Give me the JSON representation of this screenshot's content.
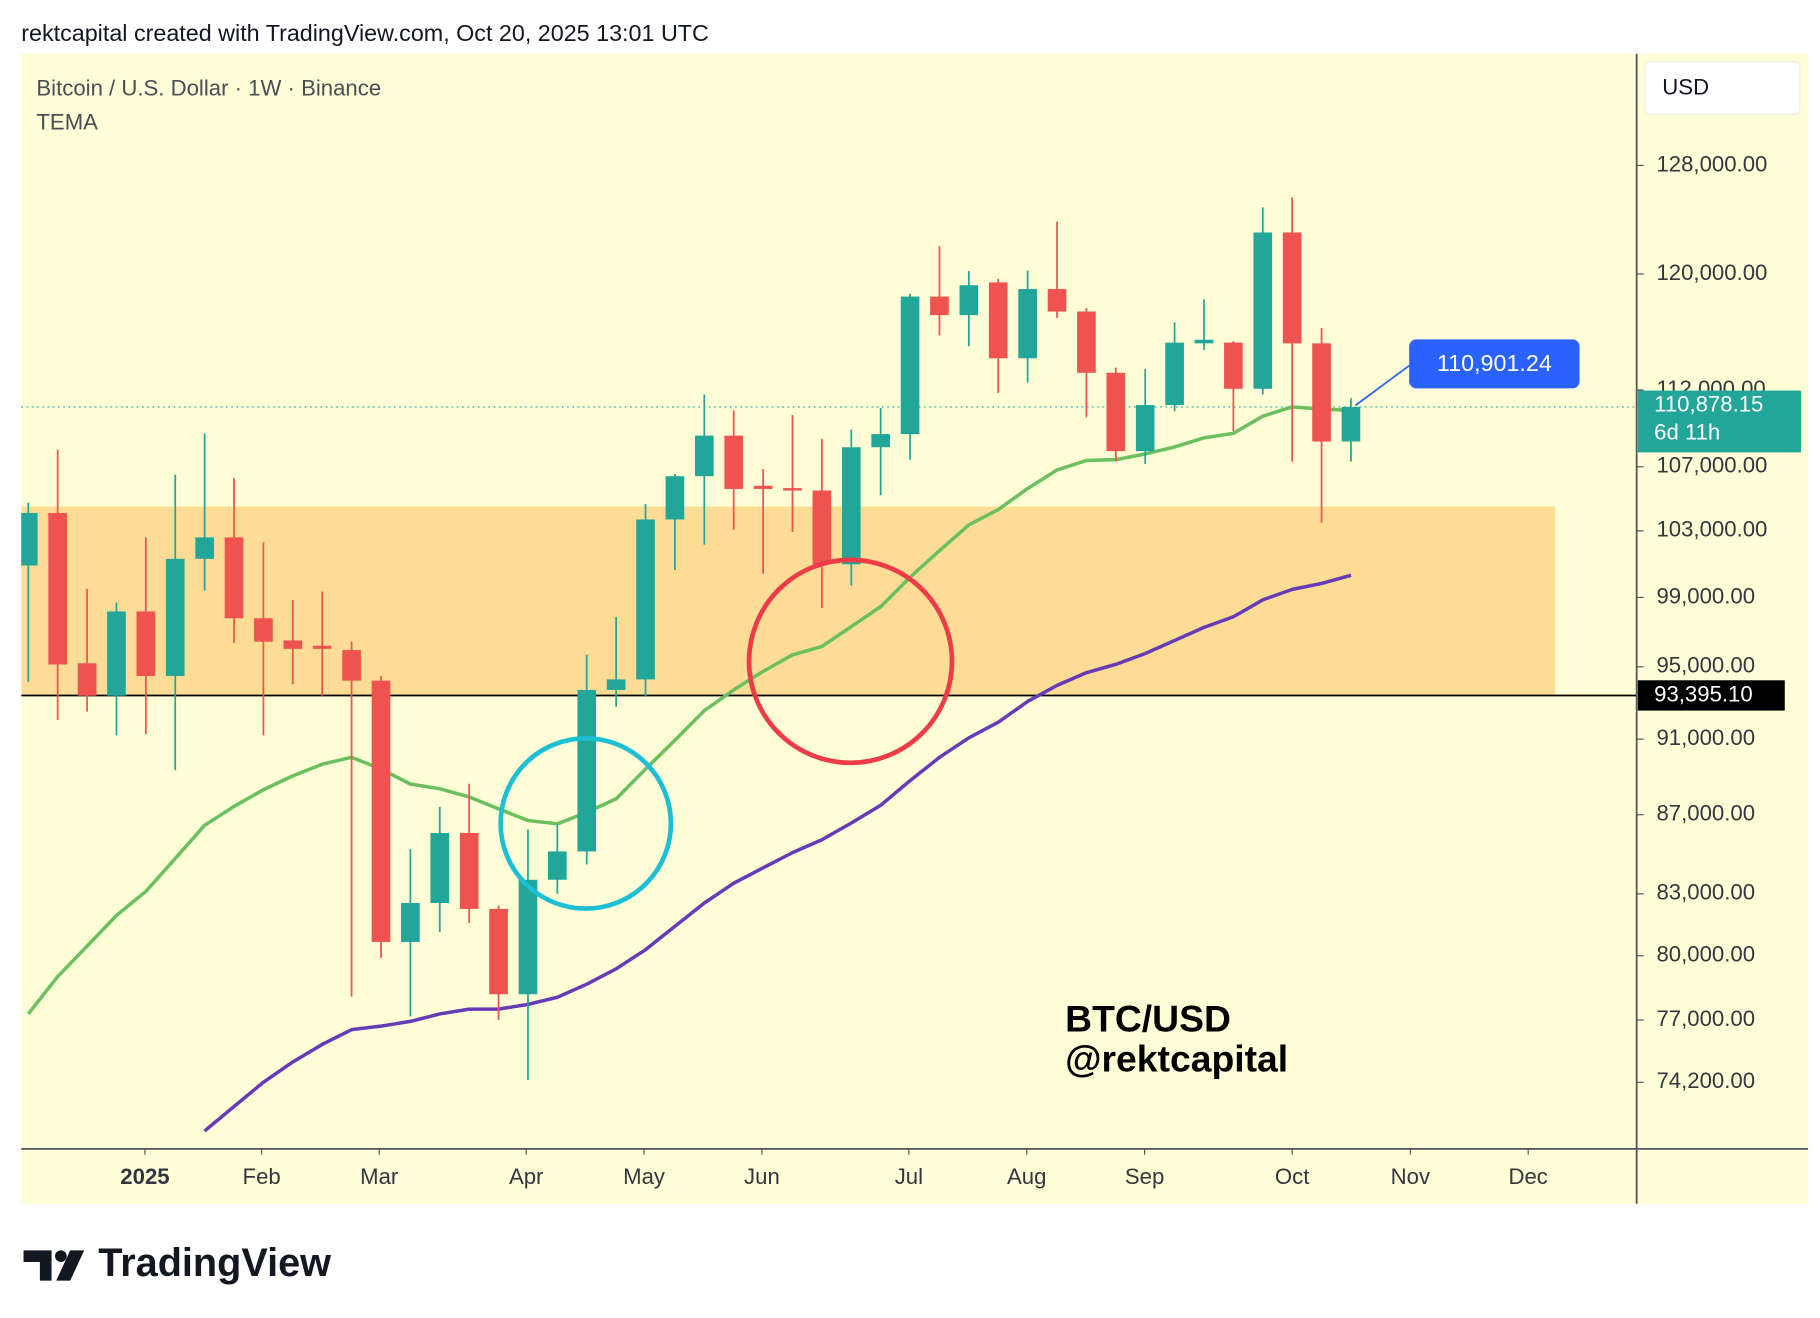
{
  "header": "rektcapital created with TradingView.com, Oct 20, 2025 13:01 UTC",
  "footer": "TradingView",
  "chart_data": {
    "type": "candlestick",
    "title": "Bitcoin / U.S. Dollar · 1W · Binance",
    "currency": "USD",
    "annotations": [
      "BTC/USD",
      "@rektcapital"
    ],
    "log_scale": true,
    "ylim": [
      71320,
      136800
    ],
    "yticks": [
      {
        "value": 128000,
        "label": "128,000.00"
      },
      {
        "value": 120000,
        "label": "120,000.00"
      },
      {
        "value": 112000,
        "label": "112,000.00"
      },
      {
        "value": 107000,
        "label": "107,000.00"
      },
      {
        "value": 103000,
        "label": "103,000.00"
      },
      {
        "value": 99000,
        "label": "99,000.00"
      },
      {
        "value": 95000,
        "label": "95,000.00"
      },
      {
        "value": 91000,
        "label": "91,000.00"
      },
      {
        "value": 87000,
        "label": "87,000.00"
      },
      {
        "value": 83000,
        "label": "83,000.00"
      },
      {
        "value": 80000,
        "label": "80,000.00"
      },
      {
        "value": 77000,
        "label": "77,000.00"
      },
      {
        "value": 74200,
        "label": "74,200.00"
      }
    ],
    "xlim": [
      -0.24,
      54.72
    ],
    "xticks": [
      {
        "value": 3.97,
        "label": "2025"
      },
      {
        "value": 7.94,
        "label": "Feb"
      },
      {
        "value": 11.94,
        "label": "Mar"
      },
      {
        "value": 16.94,
        "label": "Apr"
      },
      {
        "value": 20.95,
        "label": "May"
      },
      {
        "value": 24.96,
        "label": "Jun"
      },
      {
        "value": 29.96,
        "label": "Jul"
      },
      {
        "value": 33.97,
        "label": "Aug"
      },
      {
        "value": 37.98,
        "label": "Sep"
      },
      {
        "value": 43.0,
        "label": "Oct"
      },
      {
        "value": 47.02,
        "label": "Nov"
      },
      {
        "value": 51.03,
        "label": "Dec"
      }
    ],
    "up_color": "#22a699",
    "down_color": "#ef5350",
    "open": [
      100900,
      104100,
      95200,
      93380,
      98180,
      94480,
      101300,
      102600,
      97780,
      96500,
      96200,
      95950,
      94220,
      80660,
      82550,
      86060,
      82260,
      78190,
      83700,
      85120,
      93700,
      94290,
      103700,
      106400,
      109000,
      105800,
      105650,
      105500,
      100970,
      108250,
      109100,
      118400,
      117100,
      119400,
      114130,
      118930,
      117350,
      113150,
      108000,
      111000,
      115150,
      115200,
      112080,
      123000,
      115150,
      108620
    ],
    "high": [
      104750,
      108100,
      99500,
      98700,
      102600,
      106500,
      109150,
      106300,
      102300,
      98860,
      99340,
      96430,
      94480,
      85240,
      87400,
      88620,
      82430,
      86240,
      86500,
      95680,
      97850,
      104650,
      106550,
      111700,
      110650,
      106850,
      110350,
      108800,
      109400,
      110800,
      118600,
      122000,
      120200,
      119650,
      120250,
      123800,
      117600,
      113500,
      113400,
      116600,
      118200,
      115300,
      124850,
      125600,
      116200,
      111450
    ],
    "low": [
      94150,
      92040,
      92500,
      91200,
      91260,
      89340,
      99400,
      96360,
      91200,
      94020,
      93380,
      78080,
      79900,
      77170,
      81140,
      81580,
      77000,
      74300,
      83000,
      84470,
      92760,
      93320,
      100620,
      102160,
      103070,
      100410,
      102930,
      98390,
      99700,
      105200,
      107450,
      115700,
      114950,
      111800,
      112500,
      116900,
      110200,
      107330,
      107180,
      110600,
      114700,
      109300,
      111700,
      107330,
      103500,
      107330
    ],
    "close": [
      104100,
      95130,
      93380,
      98180,
      94480,
      101300,
      102600,
      97780,
      96430,
      96020,
      96020,
      94220,
      80660,
      82550,
      86060,
      82260,
      78190,
      83700,
      85120,
      93700,
      94290,
      103700,
      106400,
      109000,
      105600,
      105600,
      105500,
      100970,
      108250,
      109100,
      118400,
      117100,
      119200,
      114130,
      118930,
      117350,
      113150,
      108000,
      111000,
      115200,
      115400,
      112080,
      123000,
      115150,
      108620,
      110878.15
    ],
    "indicator": {
      "name": "TEMA",
      "lines": [
        {
          "color": "#6abf5e",
          "values": [
            77280,
            79010,
            80460,
            81940,
            83120,
            84760,
            86450,
            87430,
            88300,
            89030,
            89650,
            90020,
            89400,
            88600,
            88350,
            87920,
            87300,
            86700,
            86530,
            87120,
            87830,
            89400,
            90940,
            92560,
            93700,
            94740,
            95680,
            96160,
            97300,
            98460,
            100200,
            101800,
            103370,
            104310,
            105630,
            106800,
            107400,
            107450,
            107820,
            108270,
            108860,
            109150,
            110270,
            110880,
            110730,
            110650
          ]
        },
        {
          "color": "#673ab7",
          "values": [
            null,
            null,
            null,
            null,
            null,
            null,
            72080,
            73140,
            74200,
            75100,
            75890,
            76560,
            76720,
            76940,
            77280,
            77500,
            77500,
            77720,
            78050,
            78660,
            79380,
            80290,
            81420,
            82550,
            83530,
            84300,
            85060,
            85710,
            86570,
            87490,
            88780,
            90020,
            91070,
            91920,
            93060,
            93960,
            94670,
            95140,
            95750,
            96500,
            97250,
            97870,
            98860,
            99480,
            99830,
            100310
          ]
        }
      ]
    },
    "zone": {
      "top": 104500,
      "bottom": 93395.1,
      "color": "#fddc96"
    },
    "level": {
      "value": 93395.1,
      "label": "93,395.10"
    },
    "last_price": {
      "value": 110878.15,
      "label": "110,878.15",
      "countdown": "6d 11h"
    },
    "callout": {
      "value": 110901.24,
      "label": "110,901.24"
    }
  }
}
